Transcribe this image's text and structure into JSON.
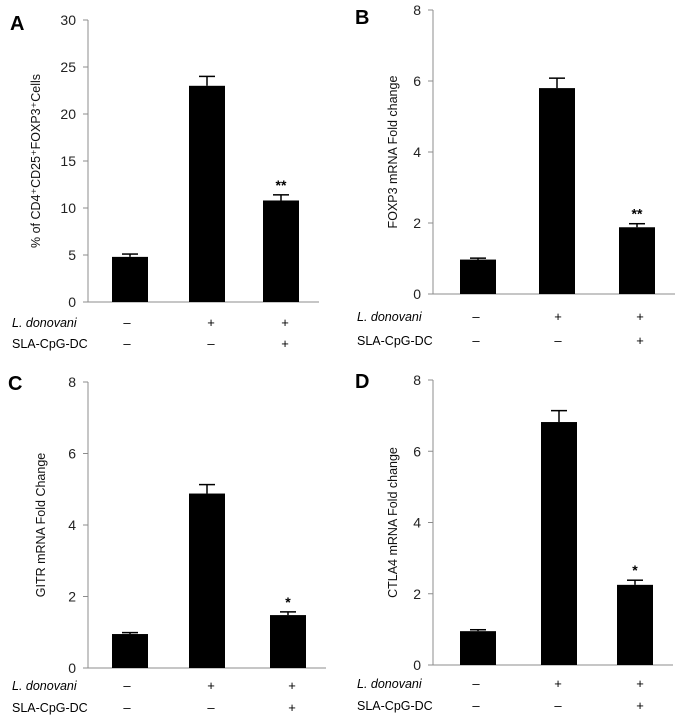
{
  "chart_data": [
    {
      "type": "bar",
      "panel": "A",
      "categories": [
        "1",
        "2",
        "3"
      ],
      "values": [
        4.8,
        23.0,
        10.8
      ],
      "errors": [
        0.3,
        1.0,
        0.6
      ],
      "significance": [
        "",
        "",
        "**"
      ],
      "ylim": [
        0,
        30
      ],
      "yticks": [
        "0",
        "5",
        "10",
        "15",
        "20",
        "25",
        "30"
      ],
      "ylabel": "% of CD4⁺CD25⁺FOXP3⁺Cells",
      "row_labels": [
        "L. donovani",
        "SLA-CpG-DC"
      ],
      "conditions": [
        [
          "–",
          "+",
          "+"
        ],
        [
          "–",
          "–",
          "+"
        ]
      ],
      "grid": false
    },
    {
      "type": "bar",
      "panel": "B",
      "categories": [
        "1",
        "2",
        "3"
      ],
      "values": [
        0.97,
        5.8,
        1.88
      ],
      "errors": [
        0.04,
        0.28,
        0.1
      ],
      "significance": [
        "",
        "",
        "**"
      ],
      "ylim": [
        0,
        8
      ],
      "yticks": [
        "0",
        "2",
        "4",
        "6",
        "8"
      ],
      "ylabel": "FOXP3 mRNA Fold change",
      "row_labels": [
        "L. donovani",
        "SLA-CpG-DC"
      ],
      "conditions": [
        [
          "–",
          "+",
          "+"
        ],
        [
          "–",
          "–",
          "+"
        ]
      ],
      "grid": false
    },
    {
      "type": "bar",
      "panel": "C",
      "categories": [
        "1",
        "2",
        "3"
      ],
      "values": [
        0.95,
        4.88,
        1.48
      ],
      "errors": [
        0.04,
        0.25,
        0.09
      ],
      "significance": [
        "",
        "",
        "*"
      ],
      "ylim": [
        0,
        8
      ],
      "yticks": [
        "0",
        "2",
        "4",
        "6",
        "8"
      ],
      "ylabel": "GITR mRNA Fold Change",
      "row_labels": [
        "L. donovani",
        "SLA-CpG-DC"
      ],
      "conditions": [
        [
          "–",
          "+",
          "+"
        ],
        [
          "–",
          "–",
          "+"
        ]
      ],
      "grid": false
    },
    {
      "type": "bar",
      "panel": "D",
      "categories": [
        "1",
        "2",
        "3"
      ],
      "values": [
        0.95,
        6.82,
        2.25
      ],
      "errors": [
        0.04,
        0.32,
        0.13
      ],
      "significance": [
        "",
        "",
        "*"
      ],
      "ylim": [
        0,
        8
      ],
      "yticks": [
        "0",
        "2",
        "4",
        "6",
        "8"
      ],
      "ylabel": "CTLA4 mRNA Fold change",
      "row_labels": [
        "L. donovani",
        "SLA-CpG-DC"
      ],
      "conditions": [
        [
          "–",
          "+",
          "+"
        ],
        [
          "–",
          "–",
          "+"
        ]
      ],
      "grid": false
    }
  ],
  "colors": {
    "bar": "#000000",
    "axis": "#8c8c8c",
    "text": "#000000"
  }
}
